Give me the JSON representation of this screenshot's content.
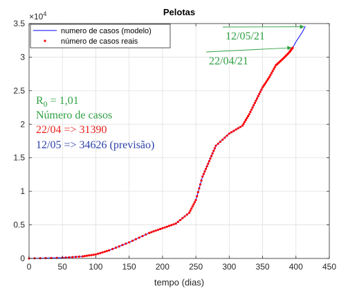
{
  "chart_data": {
    "type": "line",
    "title": "Pelotas",
    "xlabel": "tempo (dias)",
    "ylabel": "",
    "xlim": [
      0,
      450
    ],
    "ylim": [
      0,
      35000
    ],
    "xticks": [
      0,
      50,
      100,
      150,
      200,
      250,
      300,
      350,
      400,
      450
    ],
    "yticks": [
      0,
      5000,
      10000,
      15000,
      20000,
      25000,
      30000,
      35000
    ],
    "ytick_labels": [
      "0",
      "0.5",
      "1",
      "1.5",
      "2",
      "2.5",
      "3",
      "3.5"
    ],
    "y_exponent_base": "×10",
    "y_exponent_power": "4",
    "grid": true,
    "legend": "top-left",
    "series": [
      {
        "name": "numero de casos (modelo)",
        "kind": "line",
        "color": "#0000ff",
        "x": [
          0,
          50,
          80,
          100,
          120,
          150,
          180,
          200,
          220,
          240,
          250,
          260,
          270,
          280,
          300,
          320,
          330,
          340,
          350,
          360,
          370,
          380,
          390,
          395,
          400,
          410,
          414
        ],
        "y": [
          0,
          100,
          300,
          600,
          1200,
          2400,
          3800,
          4500,
          5200,
          6800,
          8700,
          12200,
          14500,
          16800,
          18600,
          19800,
          21500,
          23500,
          25500,
          27000,
          28800,
          29700,
          30700,
          31390,
          32300,
          33800,
          34626
        ]
      },
      {
        "name": "número de casos reais",
        "kind": "points",
        "color": "#ff0000",
        "x": [
          0,
          50,
          80,
          100,
          120,
          150,
          180,
          200,
          220,
          240,
          250,
          260,
          270,
          280,
          300,
          320,
          330,
          340,
          350,
          360,
          370,
          380,
          390,
          395
        ],
        "y": [
          0,
          100,
          300,
          600,
          1200,
          2400,
          3800,
          4500,
          5200,
          6800,
          8700,
          12200,
          14500,
          16800,
          18600,
          19800,
          21500,
          23500,
          25500,
          27000,
          28800,
          29700,
          30700,
          31390
        ]
      }
    ],
    "annotations": {
      "date1": "12/05/21",
      "date2": "22/04/21",
      "r0_letter": "R",
      "r0_sub": "0",
      "r0_value": " = 1,01",
      "line2": "Número de casos",
      "line3": "22/04 => 31390",
      "line4": "12/05 => 34626 (previsão)",
      "arrow1_target": [
        414,
        34626
      ],
      "arrow2_target": [
        395,
        31390
      ],
      "colors": {
        "green": "#2ea043",
        "red": "#e8211d",
        "blue": "#2b3fa8"
      }
    }
  }
}
